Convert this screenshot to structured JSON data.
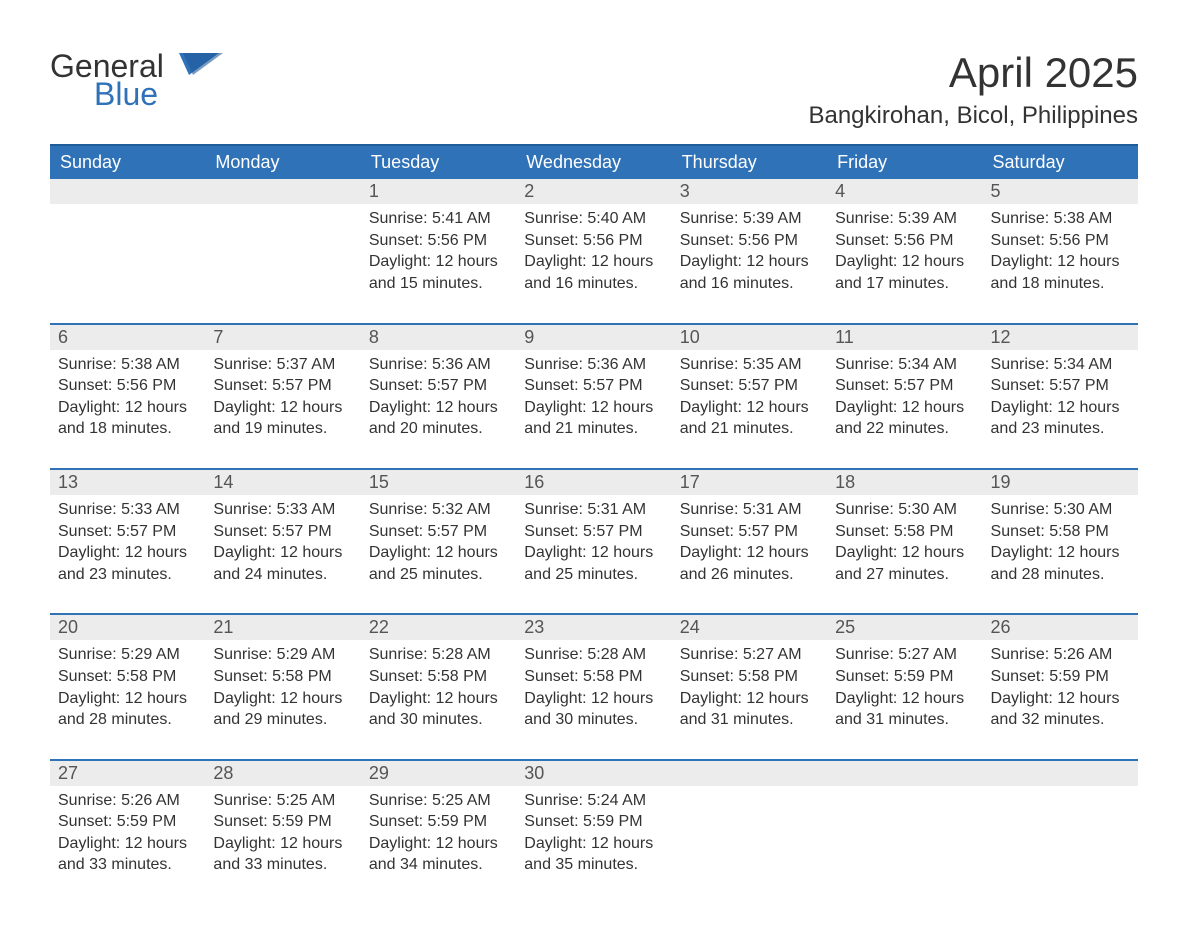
{
  "brand": {
    "word1": "General",
    "word2": "Blue"
  },
  "title": "April 2025",
  "location": "Bangkirohan, Bicol, Philippines",
  "colors": {
    "header_bg": "#2f72b8",
    "header_border": "#1f5a99",
    "row_divider": "#2f72b8",
    "daynum_bg": "#ececec",
    "text": "#333333",
    "brand_blue": "#2f72b8"
  },
  "typography": {
    "month_title_pt": 42,
    "location_pt": 24,
    "weekday_pt": 18,
    "daynum_pt": 18,
    "body_pt": 16,
    "logo_pt": 32
  },
  "weekdays": [
    "Sunday",
    "Monday",
    "Tuesday",
    "Wednesday",
    "Thursday",
    "Friday",
    "Saturday"
  ],
  "weeks": [
    [
      null,
      null,
      {
        "n": "1",
        "sunrise": "Sunrise: 5:41 AM",
        "sunset": "Sunset: 5:56 PM",
        "day1": "Daylight: 12 hours",
        "day2": "and 15 minutes."
      },
      {
        "n": "2",
        "sunrise": "Sunrise: 5:40 AM",
        "sunset": "Sunset: 5:56 PM",
        "day1": "Daylight: 12 hours",
        "day2": "and 16 minutes."
      },
      {
        "n": "3",
        "sunrise": "Sunrise: 5:39 AM",
        "sunset": "Sunset: 5:56 PM",
        "day1": "Daylight: 12 hours",
        "day2": "and 16 minutes."
      },
      {
        "n": "4",
        "sunrise": "Sunrise: 5:39 AM",
        "sunset": "Sunset: 5:56 PM",
        "day1": "Daylight: 12 hours",
        "day2": "and 17 minutes."
      },
      {
        "n": "5",
        "sunrise": "Sunrise: 5:38 AM",
        "sunset": "Sunset: 5:56 PM",
        "day1": "Daylight: 12 hours",
        "day2": "and 18 minutes."
      }
    ],
    [
      {
        "n": "6",
        "sunrise": "Sunrise: 5:38 AM",
        "sunset": "Sunset: 5:56 PM",
        "day1": "Daylight: 12 hours",
        "day2": "and 18 minutes."
      },
      {
        "n": "7",
        "sunrise": "Sunrise: 5:37 AM",
        "sunset": "Sunset: 5:57 PM",
        "day1": "Daylight: 12 hours",
        "day2": "and 19 minutes."
      },
      {
        "n": "8",
        "sunrise": "Sunrise: 5:36 AM",
        "sunset": "Sunset: 5:57 PM",
        "day1": "Daylight: 12 hours",
        "day2": "and 20 minutes."
      },
      {
        "n": "9",
        "sunrise": "Sunrise: 5:36 AM",
        "sunset": "Sunset: 5:57 PM",
        "day1": "Daylight: 12 hours",
        "day2": "and 21 minutes."
      },
      {
        "n": "10",
        "sunrise": "Sunrise: 5:35 AM",
        "sunset": "Sunset: 5:57 PM",
        "day1": "Daylight: 12 hours",
        "day2": "and 21 minutes."
      },
      {
        "n": "11",
        "sunrise": "Sunrise: 5:34 AM",
        "sunset": "Sunset: 5:57 PM",
        "day1": "Daylight: 12 hours",
        "day2": "and 22 minutes."
      },
      {
        "n": "12",
        "sunrise": "Sunrise: 5:34 AM",
        "sunset": "Sunset: 5:57 PM",
        "day1": "Daylight: 12 hours",
        "day2": "and 23 minutes."
      }
    ],
    [
      {
        "n": "13",
        "sunrise": "Sunrise: 5:33 AM",
        "sunset": "Sunset: 5:57 PM",
        "day1": "Daylight: 12 hours",
        "day2": "and 23 minutes."
      },
      {
        "n": "14",
        "sunrise": "Sunrise: 5:33 AM",
        "sunset": "Sunset: 5:57 PM",
        "day1": "Daylight: 12 hours",
        "day2": "and 24 minutes."
      },
      {
        "n": "15",
        "sunrise": "Sunrise: 5:32 AM",
        "sunset": "Sunset: 5:57 PM",
        "day1": "Daylight: 12 hours",
        "day2": "and 25 minutes."
      },
      {
        "n": "16",
        "sunrise": "Sunrise: 5:31 AM",
        "sunset": "Sunset: 5:57 PM",
        "day1": "Daylight: 12 hours",
        "day2": "and 25 minutes."
      },
      {
        "n": "17",
        "sunrise": "Sunrise: 5:31 AM",
        "sunset": "Sunset: 5:57 PM",
        "day1": "Daylight: 12 hours",
        "day2": "and 26 minutes."
      },
      {
        "n": "18",
        "sunrise": "Sunrise: 5:30 AM",
        "sunset": "Sunset: 5:58 PM",
        "day1": "Daylight: 12 hours",
        "day2": "and 27 minutes."
      },
      {
        "n": "19",
        "sunrise": "Sunrise: 5:30 AM",
        "sunset": "Sunset: 5:58 PM",
        "day1": "Daylight: 12 hours",
        "day2": "and 28 minutes."
      }
    ],
    [
      {
        "n": "20",
        "sunrise": "Sunrise: 5:29 AM",
        "sunset": "Sunset: 5:58 PM",
        "day1": "Daylight: 12 hours",
        "day2": "and 28 minutes."
      },
      {
        "n": "21",
        "sunrise": "Sunrise: 5:29 AM",
        "sunset": "Sunset: 5:58 PM",
        "day1": "Daylight: 12 hours",
        "day2": "and 29 minutes."
      },
      {
        "n": "22",
        "sunrise": "Sunrise: 5:28 AM",
        "sunset": "Sunset: 5:58 PM",
        "day1": "Daylight: 12 hours",
        "day2": "and 30 minutes."
      },
      {
        "n": "23",
        "sunrise": "Sunrise: 5:28 AM",
        "sunset": "Sunset: 5:58 PM",
        "day1": "Daylight: 12 hours",
        "day2": "and 30 minutes."
      },
      {
        "n": "24",
        "sunrise": "Sunrise: 5:27 AM",
        "sunset": "Sunset: 5:58 PM",
        "day1": "Daylight: 12 hours",
        "day2": "and 31 minutes."
      },
      {
        "n": "25",
        "sunrise": "Sunrise: 5:27 AM",
        "sunset": "Sunset: 5:59 PM",
        "day1": "Daylight: 12 hours",
        "day2": "and 31 minutes."
      },
      {
        "n": "26",
        "sunrise": "Sunrise: 5:26 AM",
        "sunset": "Sunset: 5:59 PM",
        "day1": "Daylight: 12 hours",
        "day2": "and 32 minutes."
      }
    ],
    [
      {
        "n": "27",
        "sunrise": "Sunrise: 5:26 AM",
        "sunset": "Sunset: 5:59 PM",
        "day1": "Daylight: 12 hours",
        "day2": "and 33 minutes."
      },
      {
        "n": "28",
        "sunrise": "Sunrise: 5:25 AM",
        "sunset": "Sunset: 5:59 PM",
        "day1": "Daylight: 12 hours",
        "day2": "and 33 minutes."
      },
      {
        "n": "29",
        "sunrise": "Sunrise: 5:25 AM",
        "sunset": "Sunset: 5:59 PM",
        "day1": "Daylight: 12 hours",
        "day2": "and 34 minutes."
      },
      {
        "n": "30",
        "sunrise": "Sunrise: 5:24 AM",
        "sunset": "Sunset: 5:59 PM",
        "day1": "Daylight: 12 hours",
        "day2": "and 35 minutes."
      },
      null,
      null,
      null
    ]
  ]
}
